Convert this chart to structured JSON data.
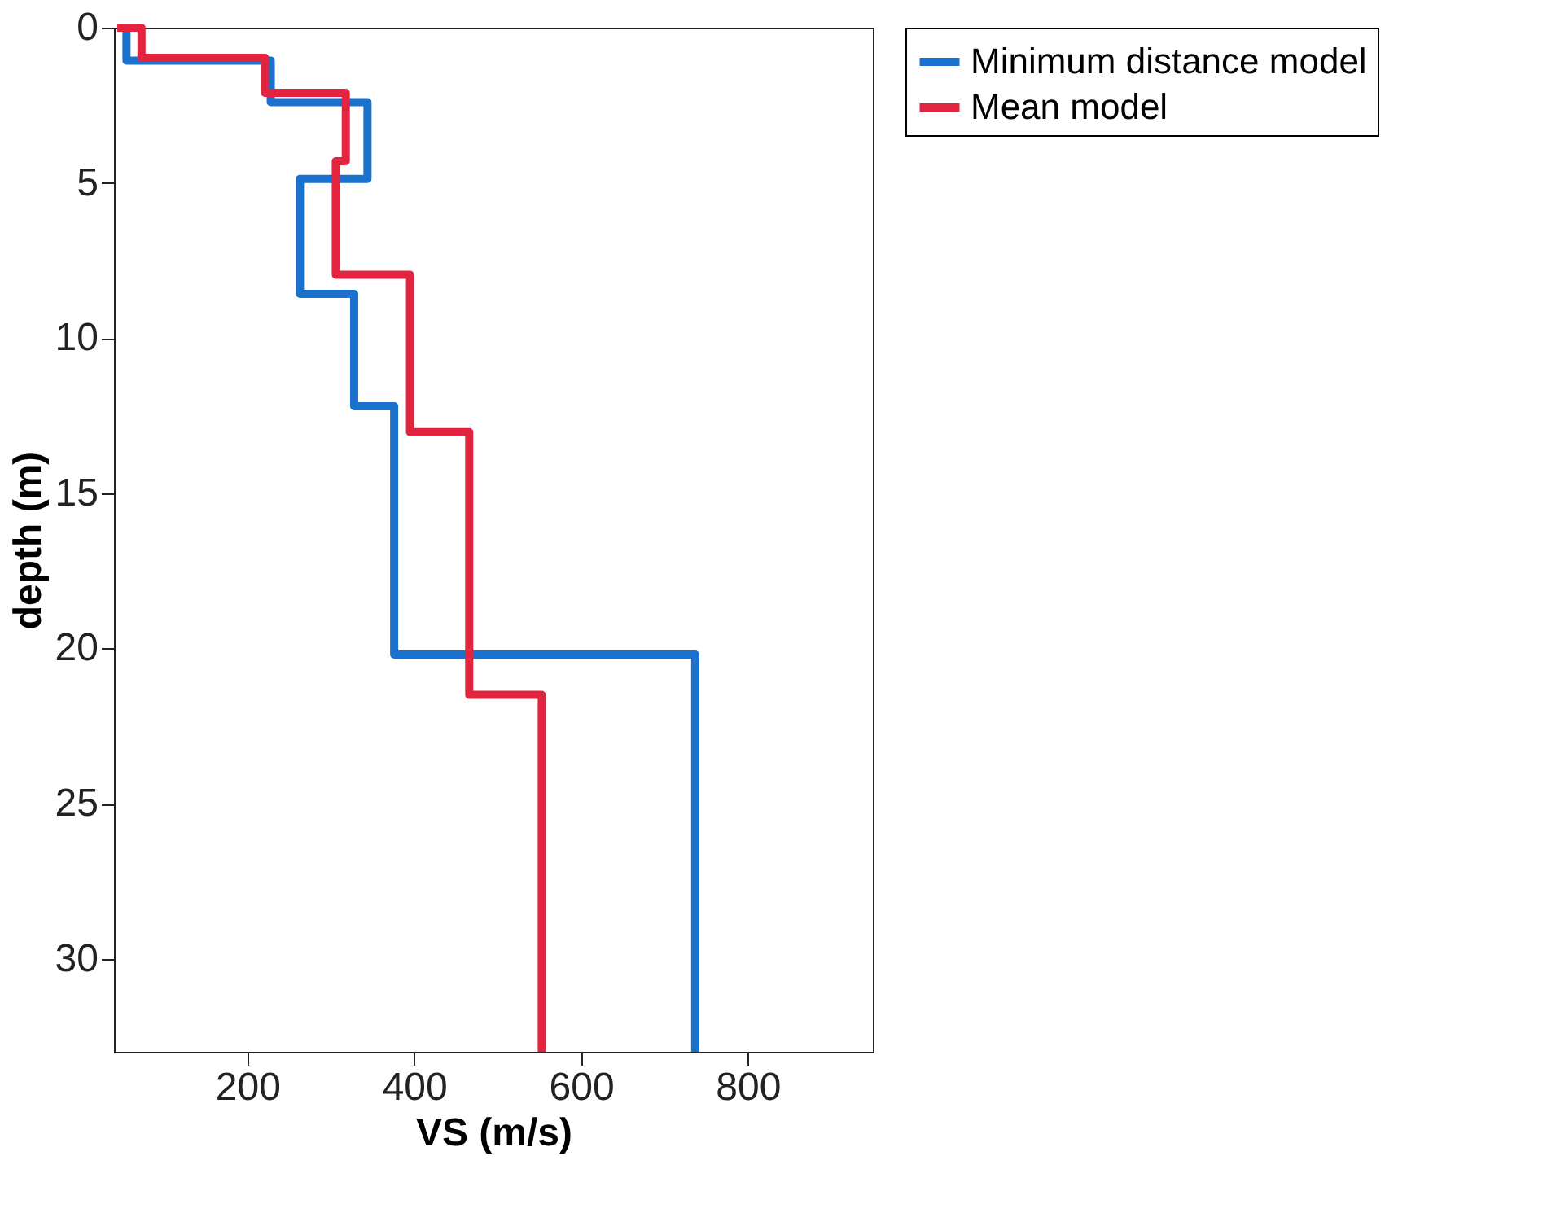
{
  "chart_data": {
    "type": "line",
    "xlabel": "VS (m/s)",
    "ylabel": "depth (m)",
    "xlim": [
      40,
      950
    ],
    "xticks": [
      200,
      400,
      600,
      800
    ],
    "ylim": [
      33,
      0
    ],
    "yticks": [
      0,
      5,
      10,
      15,
      20,
      25,
      30
    ],
    "grid": false,
    "legend": "top right",
    "marker": "none",
    "line_style": "solid",
    "series": [
      {
        "name": "Minimum distance model",
        "color": "#1a72cc",
        "x": [
          55,
          55,
          228,
          228,
          344,
          344,
          263,
          263,
          328,
          328,
          376,
          376,
          737,
          737
        ],
        "values": [
          0,
          1.06,
          1.06,
          2.4,
          2.4,
          4.87,
          4.87,
          8.58,
          8.58,
          12.2,
          12.2,
          20.2,
          20.2,
          33
        ]
      },
      {
        "name": "Mean model",
        "color": "#e3243f",
        "x": [
          44,
          73,
          73,
          221,
          221,
          318,
          318,
          306,
          306,
          395,
          395,
          466,
          466,
          553,
          553
        ],
        "values": [
          0,
          0,
          0.97,
          0.97,
          2.1,
          2.1,
          4.3,
          4.3,
          7.96,
          7.96,
          13.03,
          13.03,
          21.5,
          21.5,
          33
        ]
      }
    ]
  }
}
